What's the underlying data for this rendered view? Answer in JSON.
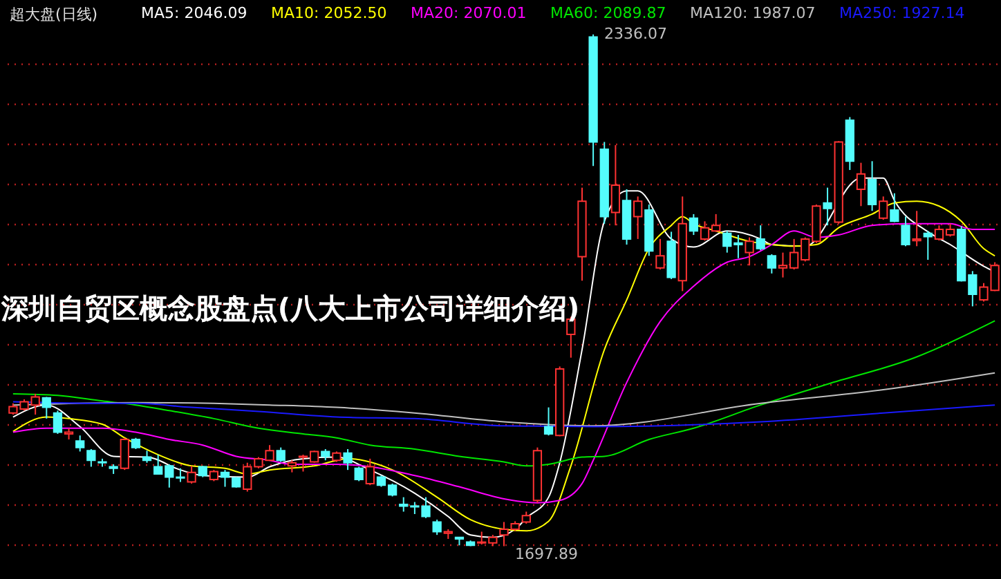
{
  "chart_data": {
    "type": "candlestick",
    "title": "深圳自贸区概念股盘点(八大上市公司详细介绍)",
    "subtitle": "超大盘(日线)",
    "categories": [
      null,
      null,
      null,
      null,
      null,
      null,
      null,
      null,
      null,
      null,
      null,
      null,
      null,
      null,
      null,
      null,
      null,
      null,
      null,
      null,
      null,
      null,
      null,
      null,
      null,
      null,
      null,
      null,
      null,
      null,
      null,
      null,
      null,
      null,
      null,
      null,
      null,
      null,
      null,
      null,
      null,
      null,
      null,
      null,
      null,
      null,
      null,
      null,
      null,
      null,
      null,
      null,
      null,
      null,
      null,
      null,
      null,
      null,
      null,
      null,
      null,
      null,
      null,
      null,
      null,
      null,
      null,
      null,
      null,
      null,
      null,
      null,
      null,
      null,
      null,
      null,
      null,
      null,
      null,
      null,
      null,
      null,
      null,
      null,
      null,
      null,
      null,
      null,
      null
    ],
    "ohlc": [
      [
        1864,
        1876,
        1862,
        1872
      ],
      [
        1869,
        1881,
        1867,
        1878
      ],
      [
        1874,
        1888,
        1862,
        1884
      ],
      [
        1883,
        1884,
        1857,
        1871
      ],
      [
        1864,
        1867,
        1838,
        1840
      ],
      [
        1838,
        1845,
        1831,
        1840
      ],
      [
        1829,
        1836,
        1816,
        1821
      ],
      [
        1817,
        1819,
        1797,
        1805
      ],
      [
        1803,
        1807,
        1797,
        1802
      ],
      [
        1797,
        1800,
        1788,
        1795
      ],
      [
        1795,
        1833,
        1793,
        1831
      ],
      [
        1831,
        1833,
        1819,
        1821
      ],
      [
        1809,
        1817,
        1802,
        1805
      ],
      [
        1797,
        1812,
        1788,
        1788
      ],
      [
        1798,
        1800,
        1771,
        1784
      ],
      [
        1784,
        1795,
        1778,
        1783
      ],
      [
        1778,
        1798,
        1776,
        1790
      ],
      [
        1797,
        1798,
        1784,
        1786
      ],
      [
        1781,
        1793,
        1779,
        1791
      ],
      [
        1790,
        1793,
        1772,
        1784
      ],
      [
        1783,
        1784,
        1771,
        1772
      ],
      [
        1769,
        1802,
        1766,
        1797
      ],
      [
        1797,
        1809,
        1795,
        1807
      ],
      [
        1805,
        1824,
        1805,
        1817
      ],
      [
        1817,
        1821,
        1803,
        1805
      ],
      [
        1798,
        1805,
        1790,
        1802
      ],
      [
        1809,
        1812,
        1791,
        1810
      ],
      [
        1803,
        1817,
        1802,
        1816
      ],
      [
        1816,
        1819,
        1805,
        1810
      ],
      [
        1805,
        1816,
        1803,
        1814
      ],
      [
        1814,
        1819,
        1793,
        1802
      ],
      [
        1795,
        1797,
        1779,
        1781
      ],
      [
        1776,
        1807,
        1774,
        1797
      ],
      [
        1784,
        1786,
        1772,
        1774
      ],
      [
        1774,
        1776,
        1760,
        1762
      ],
      [
        1750,
        1759,
        1741,
        1748
      ],
      [
        1748,
        1753,
        1738,
        1747
      ],
      [
        1748,
        1759,
        1733,
        1735
      ],
      [
        1728,
        1731,
        1712,
        1716
      ],
      [
        1714,
        1719,
        1707,
        1716
      ],
      [
        1709,
        1709,
        1699,
        1707
      ],
      [
        1703,
        1705,
        1698,
        1699
      ],
      [
        1702,
        1716,
        1700,
        1703
      ],
      [
        1702,
        1712,
        1698,
        1709
      ],
      [
        1712,
        1728,
        1697.89,
        1719
      ],
      [
        1719,
        1729,
        1717,
        1726
      ],
      [
        1728,
        1741,
        1726,
        1736
      ],
      [
        1755,
        1821,
        1752,
        1817
      ],
      [
        1847,
        1871,
        1836,
        1838
      ],
      [
        1836,
        1922,
        1835,
        1919
      ],
      [
        1962,
        1984,
        1933,
        1981
      ],
      [
        2059,
        2145,
        2029,
        2128
      ],
      [
        2333,
        2336.07,
        2172,
        2202
      ],
      [
        2193,
        2202,
        2100,
        2109
      ],
      [
        2114,
        2198,
        2098,
        2148
      ],
      [
        2129,
        2143,
        2074,
        2081
      ],
      [
        2109,
        2134,
        2081,
        2128
      ],
      [
        2117,
        2124,
        2060,
        2066
      ],
      [
        2045,
        2081,
        2043,
        2060
      ],
      [
        2078,
        2090,
        2031,
        2033
      ],
      [
        2029,
        2134,
        2016,
        2100
      ],
      [
        2107,
        2112,
        2086,
        2091
      ],
      [
        2081,
        2103,
        2079,
        2095
      ],
      [
        2091,
        2112,
        2090,
        2098
      ],
      [
        2088,
        2091,
        2064,
        2072
      ],
      [
        2076,
        2086,
        2057,
        2074
      ],
      [
        2064,
        2083,
        2048,
        2078
      ],
      [
        2081,
        2098,
        2067,
        2069
      ],
      [
        2060,
        2062,
        2038,
        2045
      ],
      [
        2045,
        2064,
        2033,
        2048
      ],
      [
        2045,
        2081,
        2043,
        2064
      ],
      [
        2055,
        2083,
        2053,
        2081
      ],
      [
        2078,
        2124,
        2076,
        2122
      ],
      [
        2126,
        2145,
        2098,
        2119
      ],
      [
        2102,
        2203,
        2100,
        2202
      ],
      [
        2229,
        2233,
        2167,
        2178
      ],
      [
        2143,
        2176,
        2122,
        2162
      ],
      [
        2155,
        2178,
        2116,
        2124
      ],
      [
        2107,
        2134,
        2105,
        2128
      ],
      [
        2117,
        2138,
        2102,
        2103
      ],
      [
        2098,
        2109,
        2072,
        2074
      ],
      [
        2079,
        2116,
        2072,
        2081
      ],
      [
        2088,
        2091,
        2055,
        2084
      ],
      [
        2081,
        2098,
        2079,
        2093
      ],
      [
        2086,
        2100,
        2084,
        2093
      ],
      [
        2093,
        2097,
        2028,
        2029
      ],
      [
        2036,
        2041,
        1997,
        2012
      ],
      [
        2005,
        2026,
        2003,
        2021
      ],
      [
        2017,
        2052,
        2016,
        2048
      ]
    ],
    "colors": [
      "#ff3232",
      "#ff3232",
      "#ff3232",
      "#54fcfc",
      "#54fcfc",
      "#ff3232",
      "#54fcfc",
      "#54fcfc",
      "#54fcfc",
      "#54fcfc",
      "#ff3232",
      "#54fcfc",
      "#54fcfc",
      "#54fcfc",
      "#54fcfc",
      "#54fcfc",
      "#ff3232",
      "#54fcfc",
      "#ff3232",
      "#54fcfc",
      "#54fcfc",
      "#ff3232",
      "#ff3232",
      "#ff3232",
      "#54fcfc",
      "#ff3232",
      "#ff3232",
      "#ff3232",
      "#54fcfc",
      "#ff3232",
      "#54fcfc",
      "#54fcfc",
      "#ff3232",
      "#54fcfc",
      "#54fcfc",
      "#54fcfc",
      "#54fcfc",
      "#54fcfc",
      "#54fcfc",
      "#ff3232",
      "#54fcfc",
      "#54fcfc",
      "#ff3232",
      "#ff3232",
      "#ff3232",
      "#ff3232",
      "#ff3232",
      "#ff3232",
      "#54fcfc",
      "#ff3232",
      "#ff3232",
      "#ff3232",
      "#54fcfc",
      "#54fcfc",
      "#ff3232",
      "#54fcfc",
      "#ff3232",
      "#54fcfc",
      "#ff3232",
      "#54fcfc",
      "#ff3232",
      "#54fcfc",
      "#ff3232",
      "#ff3232",
      "#54fcfc",
      "#54fcfc",
      "#ff3232",
      "#54fcfc",
      "#54fcfc",
      "#ff3232",
      "#ff3232",
      "#ff3232",
      "#ff3232",
      "#54fcfc",
      "#ff3232",
      "#54fcfc",
      "#ff3232",
      "#54fcfc",
      "#ff3232",
      "#54fcfc",
      "#54fcfc",
      "#ff3232",
      "#54fcfc",
      "#ff3232",
      "#ff3232",
      "#54fcfc",
      "#54fcfc",
      "#ff3232",
      "#ff3232"
    ],
    "series": [
      {
        "name": "MA5: 2046.09",
        "color": "#ffffff",
        "type": "line",
        "values": [
          1859,
          null,
          null,
          1874,
          null,
          null,
          1847,
          null,
          null,
          1810,
          null,
          null,
          1809,
          null,
          null,
          1793,
          null,
          1786,
          null,
          null,
          null,
          1784,
          null,
          1797,
          null,
          null,
          1807,
          null,
          null,
          1809,
          null,
          null,
          1793,
          null,
          null,
          null,
          1764,
          null,
          null,
          1735,
          null,
          1712,
          null,
          1709,
          null,
          1719,
          1733,
          null,
          1759,
          1802,
          null,
          1943,
          null,
          2103,
          null,
          2141,
          2141,
          null,
          null,
          2081,
          null,
          2071,
          null,
          null,
          2091,
          null,
          null,
          2081,
          2074,
          null,
          null,
          2072,
          null,
          null,
          null,
          null,
          2157,
          null,
          2157,
          2129,
          null,
          null,
          2090,
          null,
          2074,
          null,
          null,
          2047,
          2040
        ]
      },
      {
        "name": "MA10: 2052.50",
        "color": "#ffff00",
        "type": "line",
        "values": [
          1841,
          null,
          null,
          1859,
          null,
          1857,
          null,
          null,
          1850,
          null,
          1833,
          null,
          null,
          1812,
          null,
          null,
          1798,
          null,
          null,
          1795,
          null,
          1788,
          null,
          1793,
          null,
          null,
          null,
          1798,
          null,
          null,
          1807,
          null,
          null,
          null,
          1793,
          null,
          null,
          null,
          1759,
          null,
          null,
          1731,
          null,
          null,
          1719,
          null,
          1717,
          null,
          1729,
          null,
          1798,
          null,
          null,
          1943,
          null,
          2005,
          null,
          2069,
          null,
          2098,
          2109,
          2100,
          null,
          2091,
          null,
          null,
          2078,
          null,
          2074,
          null,
          2072,
          null,
          2074,
          null,
          2095,
          null,
          null,
          2112,
          null,
          2126,
          null,
          2128,
          null,
          2122,
          null,
          2103,
          null,
          2069,
          2060
        ]
      },
      {
        "name": "MA20: 2070.01",
        "color": "#ff00ff",
        "type": "line",
        "values": [
          1840,
          null,
          null,
          1845,
          null,
          null,
          null,
          null,
          1845,
          null,
          null,
          1840,
          null,
          null,
          1831,
          null,
          null,
          1824,
          null,
          null,
          1810,
          null,
          null,
          1805,
          null,
          1800,
          null,
          null,
          null,
          1800,
          null,
          null,
          1797,
          null,
          null,
          null,
          1786,
          null,
          null,
          null,
          1772,
          null,
          null,
          null,
          1757,
          null,
          null,
          1752,
          null,
          1755,
          null,
          1776,
          1805,
          null,
          null,
          1902,
          null,
          null,
          1978,
          null,
          null,
          2022,
          null,
          null,
          2052,
          null,
          2059,
          null,
          2074,
          null,
          2091,
          null,
          2083,
          null,
          2086,
          null,
          null,
          2098,
          null,
          null,
          2100,
          null,
          null,
          null,
          2100,
          null,
          2093,
          null,
          2093
        ]
      },
      {
        "name": "MA60: 2089.87",
        "color": "#00e600",
        "type": "line",
        "values": [
          1888,
          null,
          null,
          null,
          1886,
          null,
          null,
          null,
          1879,
          null,
          null,
          1874,
          null,
          null,
          1867,
          null,
          null,
          null,
          1857,
          null,
          null,
          null,
          1845,
          null,
          null,
          null,
          1838,
          null,
          null,
          1833,
          null,
          null,
          1824,
          null,
          null,
          null,
          1819,
          null,
          null,
          null,
          1810,
          null,
          null,
          null,
          1803,
          null,
          1798,
          null,
          1800,
          null,
          null,
          1809,
          null,
          1810,
          null,
          null,
          null,
          1831,
          null,
          null,
          null,
          1845,
          null,
          null,
          null,
          null,
          null,
          1874,
          null,
          null,
          null,
          null,
          null,
          1900,
          null,
          null,
          null,
          null,
          null,
          null,
          null,
          1934,
          null,
          null,
          null,
          null,
          null,
          null,
          1979
        ]
      },
      {
        "name": "MA120: 1987.07",
        "color": "#c0c0c0",
        "type": "line",
        "values": [
          1874,
          null,
          null,
          null,
          null,
          null,
          null,
          null,
          null,
          null,
          null,
          1877,
          null,
          null,
          null,
          null,
          null,
          null,
          1876,
          null,
          null,
          null,
          null,
          1874,
          null,
          null,
          null,
          null,
          null,
          1871,
          null,
          null,
          null,
          null,
          null,
          null,
          1864,
          null,
          null,
          null,
          null,
          null,
          null,
          null,
          1853,
          null,
          null,
          null,
          null,
          null,
          null,
          null,
          1848,
          null,
          null,
          null,
          null,
          null,
          null,
          null,
          null,
          null,
          null,
          null,
          null,
          null,
          null,
          1876,
          null,
          null,
          null,
          null,
          null,
          null,
          null,
          null,
          null,
          null,
          1893,
          null,
          null,
          null,
          null,
          null,
          null,
          null,
          null,
          null,
          1914
        ]
      },
      {
        "name": "MA250: 1927.14",
        "color": "#1a1aff",
        "type": "line",
        "values": [
          1878,
          null,
          null,
          null,
          null,
          null,
          null,
          null,
          1876,
          null,
          null,
          1876,
          null,
          null,
          null,
          null,
          1871,
          null,
          null,
          null,
          null,
          null,
          1866,
          null,
          null,
          null,
          null,
          null,
          null,
          1859,
          null,
          null,
          null,
          null,
          null,
          null,
          1857,
          null,
          null,
          null,
          null,
          null,
          null,
          null,
          1848,
          null,
          null,
          null,
          null,
          null,
          null,
          null,
          1847,
          null,
          null,
          null,
          null,
          null,
          null,
          null,
          null,
          null,
          null,
          null,
          null,
          null,
          null,
          1853,
          null,
          null,
          null,
          null,
          null,
          null,
          null,
          null,
          null,
          null,
          1864,
          null,
          null,
          null,
          null,
          null,
          null,
          null,
          null,
          null,
          1874
        ]
      }
    ],
    "ylim": [
      1657,
      2379
    ],
    "yticks": [
      {
        "value": 1700,
        "label": null
      },
      {
        "value": 1750,
        "label": null
      },
      {
        "value": 1800,
        "label": null
      },
      {
        "value": 1850,
        "label": null
      },
      {
        "value": 1900,
        "label": null
      },
      {
        "value": 1950,
        "label": null
      },
      {
        "value": 2000,
        "label": null
      },
      {
        "value": 2050,
        "label": null
      },
      {
        "value": 2100,
        "label": null
      },
      {
        "value": 2150,
        "label": null
      },
      {
        "value": 2200,
        "label": null
      },
      {
        "value": 2250,
        "label": null
      },
      {
        "value": 2300,
        "label": null
      }
    ],
    "grid": "y",
    "tick_labels": false,
    "legend": "top left",
    "annotations": [
      "2336.07",
      "1697.89"
    ]
  }
}
